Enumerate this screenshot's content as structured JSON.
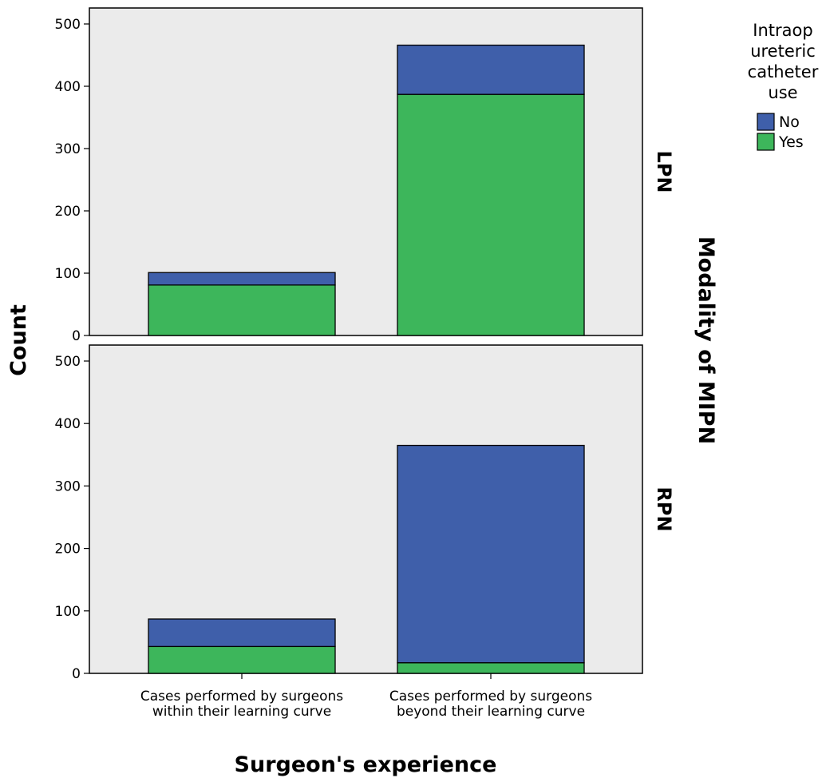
{
  "chart_data": {
    "type": "bar",
    "stacked": true,
    "categories": [
      [
        "Cases performed by surgeons",
        "within their learning curve"
      ],
      [
        "Cases performed by surgeons",
        "beyond their learning curve"
      ]
    ],
    "xlabel": "Surgeon's experience",
    "ylabel": "Count",
    "facet_label": "Modality of MIPN",
    "ylim": [
      0,
      500
    ],
    "yticks": [
      "0",
      "100",
      "200",
      "300",
      "400",
      "500"
    ],
    "legend": {
      "title": [
        "Intraop",
        "ureteric",
        "catheter",
        "use"
      ],
      "placement": "top-right",
      "entries": [
        {
          "name": "No",
          "color": "#3f5faa"
        },
        {
          "name": "Yes",
          "color": "#3db65b"
        }
      ]
    },
    "panel_background": "#ebebeb",
    "panels": [
      {
        "label": "LPN",
        "series": [
          {
            "name": "Yes",
            "values": [
              81,
              387
            ]
          },
          {
            "name": "No",
            "values": [
              20,
              79
            ]
          }
        ]
      },
      {
        "label": "RPN",
        "series": [
          {
            "name": "Yes",
            "values": [
              43,
              17
            ]
          },
          {
            "name": "No",
            "values": [
              44,
              348
            ]
          }
        ]
      }
    ]
  }
}
